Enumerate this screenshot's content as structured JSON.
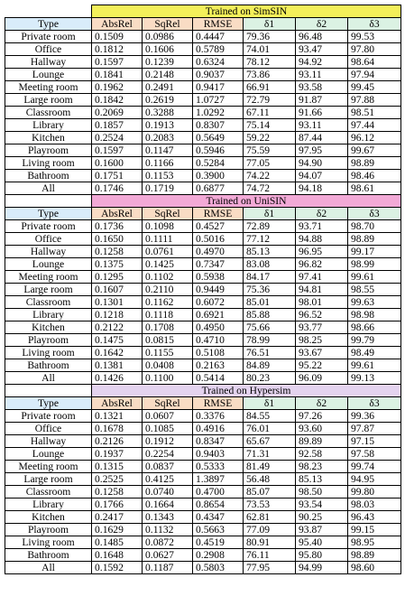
{
  "colors": {
    "type_bg": "#d9ecfa",
    "err_bg": "#f9dcc4",
    "delta_bg": "#dbf2e3",
    "section_bgs": [
      "#f4f05a",
      "#f2a9d6",
      "#e4d3ef"
    ]
  },
  "columns": [
    "Type",
    "AbsRel",
    "SqRel",
    "RMSE",
    "δ1",
    "δ2",
    "δ3"
  ],
  "sections": [
    {
      "title": "Trained on SimSIN",
      "rows": [
        [
          "Private room",
          "0.1509",
          "0.0986",
          "0.4447",
          "79.36",
          "96.48",
          "99.53"
        ],
        [
          "Office",
          "0.1812",
          "0.1606",
          "0.5789",
          "74.01",
          "93.47",
          "97.80"
        ],
        [
          "Hallway",
          "0.1597",
          "0.1239",
          "0.6324",
          "78.12",
          "94.92",
          "98.64"
        ],
        [
          "Lounge",
          "0.1841",
          "0.2148",
          "0.9037",
          "73.86",
          "93.11",
          "97.94"
        ],
        [
          "Meeting room",
          "0.1962",
          "0.2491",
          "0.9417",
          "66.91",
          "93.58",
          "99.45"
        ],
        [
          "Large room",
          "0.1842",
          "0.2619",
          "1.0727",
          "72.79",
          "91.87",
          "97.88"
        ],
        [
          "Classroom",
          "0.2069",
          "0.3288",
          "1.0292",
          "67.11",
          "91.66",
          "98.51"
        ],
        [
          "Library",
          "0.1857",
          "0.1913",
          "0.8307",
          "75.14",
          "93.11",
          "97.44"
        ],
        [
          "Kitchen",
          "0.2524",
          "0.2083",
          "0.5649",
          "59.22",
          "87.44",
          "96.12"
        ],
        [
          "Playroom",
          "0.1597",
          "0.1147",
          "0.5946",
          "75.59",
          "97.95",
          "99.67"
        ],
        [
          "Living room",
          "0.1600",
          "0.1166",
          "0.5284",
          "77.05",
          "94.90",
          "98.89"
        ],
        [
          "Bathroom",
          "0.1751",
          "0.1153",
          "0.3900",
          "74.22",
          "94.07",
          "98.46"
        ]
      ],
      "all": [
        "All",
        "0.1746",
        "0.1719",
        "0.6877",
        "74.72",
        "94.18",
        "98.61"
      ]
    },
    {
      "title": "Trained on UniSIN",
      "rows": [
        [
          "Private room",
          "0.1736",
          "0.1098",
          "0.4527",
          "72.89",
          "93.71",
          "98.70"
        ],
        [
          "Office",
          "0.1650",
          "0.1111",
          "0.5016",
          "77.12",
          "94.88",
          "98.89"
        ],
        [
          "Hallway",
          "0.1258",
          "0.0761",
          "0.4970",
          "85.13",
          "96.95",
          "99.17"
        ],
        [
          "Lounge",
          "0.1375",
          "0.1425",
          "0.7347",
          "83.08",
          "96.82",
          "98.99"
        ],
        [
          "Meeting room",
          "0.1295",
          "0.1102",
          "0.5938",
          "84.17",
          "97.41",
          "99.61"
        ],
        [
          "Large room",
          "0.1607",
          "0.2110",
          "0.9449",
          "75.36",
          "94.81",
          "98.55"
        ],
        [
          "Classroom",
          "0.1301",
          "0.1162",
          "0.6072",
          "85.01",
          "98.01",
          "99.63"
        ],
        [
          "Library",
          "0.1218",
          "0.1118",
          "0.6921",
          "85.88",
          "96.52",
          "98.98"
        ],
        [
          "Kitchen",
          "0.2122",
          "0.1708",
          "0.4950",
          "75.66",
          "93.77",
          "98.66"
        ],
        [
          "Playroom",
          "0.1475",
          "0.0815",
          "0.4710",
          "78.99",
          "98.25",
          "99.79"
        ],
        [
          "Living room",
          "0.1642",
          "0.1155",
          "0.5108",
          "76.51",
          "93.67",
          "98.49"
        ],
        [
          "Bathroom",
          "0.1381",
          "0.0408",
          "0.2163",
          "84.89",
          "95.22",
          "99.61"
        ]
      ],
      "all": [
        "All",
        "0.1426",
        "0.1100",
        "0.5414",
        "80.23",
        "96.09",
        "99.13"
      ]
    },
    {
      "title": "Trained on Hypersim",
      "rows": [
        [
          "Private room",
          "0.1321",
          "0.0607",
          "0.3376",
          "84.55",
          "97.26",
          "99.36"
        ],
        [
          "Office",
          "0.1678",
          "0.1085",
          "0.4916",
          "76.01",
          "93.60",
          "97.87"
        ],
        [
          "Hallway",
          "0.2126",
          "0.1912",
          "0.8347",
          "65.67",
          "89.89",
          "97.15"
        ],
        [
          "Lounge",
          "0.1937",
          "0.2254",
          "0.9403",
          "71.31",
          "92.58",
          "97.58"
        ],
        [
          "Meeting room",
          "0.1315",
          "0.0837",
          "0.5333",
          "81.49",
          "98.23",
          "99.74"
        ],
        [
          "Large room",
          "0.2525",
          "0.4125",
          "1.3897",
          "56.48",
          "85.13",
          "94.95"
        ],
        [
          "Classroom",
          "0.1258",
          "0.0740",
          "0.4700",
          "85.07",
          "98.50",
          "99.80"
        ],
        [
          "Library",
          "0.1766",
          "0.1664",
          "0.8654",
          "73.53",
          "93.54",
          "98.03"
        ],
        [
          "Kitchen",
          "0.2417",
          "0.1343",
          "0.4347",
          "62.81",
          "90.25",
          "96.43"
        ],
        [
          "Playroom",
          "0.1629",
          "0.1132",
          "0.5663",
          "77.09",
          "93.87",
          "99.15"
        ],
        [
          "Living room",
          "0.1485",
          "0.0872",
          "0.4519",
          "80.91",
          "95.40",
          "98.95"
        ],
        [
          "Bathroom",
          "0.1648",
          "0.0627",
          "0.2908",
          "76.11",
          "95.80",
          "98.89"
        ]
      ],
      "all": [
        "All",
        "0.1592",
        "0.1187",
        "0.5803",
        "77.95",
        "94.99",
        "98.60"
      ]
    }
  ]
}
